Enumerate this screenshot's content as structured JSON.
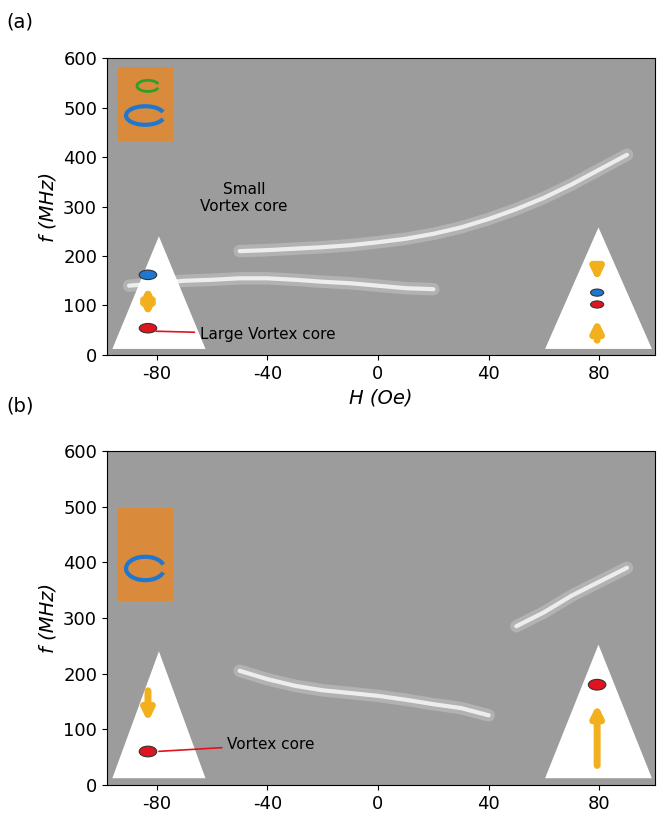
{
  "chart_data": [
    {
      "type": "line",
      "panel_label": "(a)",
      "xlabel": "H (Oe)",
      "ylabel": "f (MHz)",
      "xlim": [
        -98,
        100
      ],
      "xticks": [
        -80,
        -40,
        0,
        40,
        80
      ],
      "ylim": [
        0,
        600
      ],
      "yticks": [
        0,
        100,
        200,
        300,
        400,
        500,
        600
      ],
      "series": [
        {
          "color": "#f4f4f4",
          "x": [
            -90,
            -80,
            -70,
            -60,
            -50,
            -40,
            -30,
            -20,
            -10,
            0,
            10,
            20
          ],
          "values": [
            140,
            145,
            150,
            152,
            155,
            155,
            152,
            148,
            145,
            140,
            135,
            133
          ]
        },
        {
          "color": "#f4f4f4",
          "x": [
            -50,
            -40,
            -30,
            -20,
            -10,
            0,
            10,
            20,
            30,
            40,
            50,
            60,
            70,
            80,
            90
          ],
          "values": [
            210,
            212,
            215,
            218,
            222,
            228,
            235,
            245,
            258,
            275,
            295,
            318,
            345,
            375,
            405
          ]
        }
      ],
      "annotations": [
        "Small\nVortex core",
        "Large Vortex core"
      ]
    },
    {
      "type": "line",
      "panel_label": "(b)",
      "ylabel": "f (MHz)",
      "xlim": [
        -98,
        100
      ],
      "xticks": [
        -80,
        -40,
        0,
        40,
        80
      ],
      "ylim": [
        0,
        600
      ],
      "yticks": [
        0,
        100,
        200,
        300,
        400,
        500,
        600
      ],
      "series": [
        {
          "color": "#f4f4f4",
          "x": [
            -50,
            -40,
            -30,
            -20,
            -10,
            0,
            10,
            20,
            30,
            40
          ],
          "values": [
            205,
            190,
            178,
            170,
            165,
            160,
            153,
            145,
            138,
            125
          ]
        },
        {
          "color": "#f4f4f4",
          "x": [
            50,
            60,
            70,
            80,
            90
          ],
          "values": [
            285,
            310,
            340,
            365,
            390
          ]
        }
      ],
      "annotations": [
        "Vortex core"
      ]
    }
  ]
}
